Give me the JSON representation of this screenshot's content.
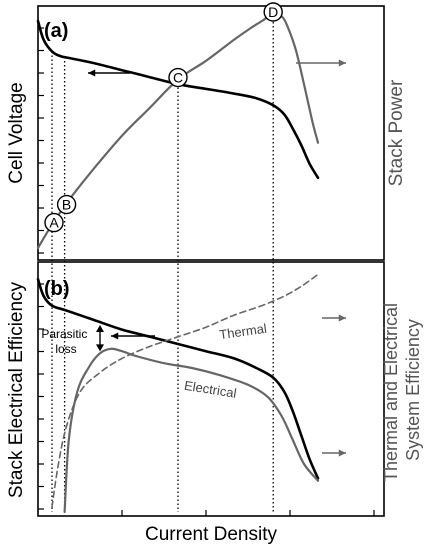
{
  "chart_data": [
    {
      "type": "line",
      "panel_label": "(a)",
      "ylabel_left": "Cell Voltage",
      "ylabel_right": "Stack Power",
      "xlim": [
        0,
        1
      ],
      "series": [
        {
          "key": "voltage",
          "x": [
            0.0,
            0.02,
            0.05,
            0.08,
            0.12,
            0.2,
            0.3,
            0.4,
            0.5,
            0.6,
            0.7,
            0.78,
            0.84,
            0.88,
            0.91,
            0.94,
            0.97,
            1.0
          ],
          "y": [
            0.97,
            0.89,
            0.84,
            0.82,
            0.81,
            0.79,
            0.76,
            0.73,
            0.7,
            0.68,
            0.66,
            0.64,
            0.61,
            0.57,
            0.51,
            0.44,
            0.36,
            0.3
          ]
        },
        {
          "key": "power",
          "x": [
            0.0,
            0.05,
            0.12,
            0.2,
            0.3,
            0.4,
            0.5,
            0.6,
            0.7,
            0.76,
            0.8,
            0.84,
            0.87,
            0.89,
            0.92,
            0.95,
            0.98,
            1.0
          ],
          "y": [
            0.0,
            0.1,
            0.22,
            0.34,
            0.48,
            0.6,
            0.72,
            0.8,
            0.89,
            0.94,
            0.97,
            1.0,
            0.99,
            0.95,
            0.85,
            0.7,
            0.54,
            0.45
          ]
        }
      ],
      "points": [
        {
          "label": "A",
          "x": 0.05,
          "series": "power"
        },
        {
          "label": "B",
          "x": 0.095,
          "series": "power"
        },
        {
          "label": "C",
          "x": 0.5,
          "series": "power"
        },
        {
          "label": "D",
          "x": 0.84,
          "series": "power"
        }
      ]
    },
    {
      "type": "line",
      "panel_label": "(b)",
      "ylabel_left": "Stack Electrical Efficiency",
      "ylabel_right": "Thermal and Electrical\nSystem Efficiency",
      "xlabel": "Current Density",
      "xlim": [
        0,
        1
      ],
      "annotation": "Parasitic\nloss",
      "series": [
        {
          "key": "stack",
          "x": [
            0.0,
            0.02,
            0.05,
            0.1,
            0.2,
            0.3,
            0.4,
            0.5,
            0.6,
            0.7,
            0.78,
            0.84,
            0.88,
            0.91,
            0.94,
            0.97,
            1.0
          ],
          "y": [
            0.97,
            0.9,
            0.86,
            0.84,
            0.8,
            0.76,
            0.73,
            0.7,
            0.67,
            0.64,
            0.6,
            0.56,
            0.5,
            0.42,
            0.32,
            0.22,
            0.14
          ]
        },
        {
          "key": "electrical",
          "name": "Electrical",
          "x": [
            0.095,
            0.11,
            0.14,
            0.18,
            0.22,
            0.26,
            0.3,
            0.35,
            0.45,
            0.55,
            0.65,
            0.75,
            0.82,
            0.87,
            0.91,
            0.95,
            1.0
          ],
          "y": [
            0.0,
            0.3,
            0.5,
            0.6,
            0.66,
            0.68,
            0.67,
            0.65,
            0.62,
            0.6,
            0.57,
            0.53,
            0.48,
            0.4,
            0.3,
            0.2,
            0.13
          ]
        },
        {
          "key": "thermal",
          "name": "Thermal",
          "x": [
            0.05,
            0.07,
            0.1,
            0.15,
            0.22,
            0.3,
            0.4,
            0.5,
            0.6,
            0.7,
            0.8,
            0.88,
            0.94,
            1.0
          ],
          "y": [
            0.02,
            0.18,
            0.35,
            0.5,
            0.58,
            0.64,
            0.69,
            0.73,
            0.77,
            0.82,
            0.86,
            0.9,
            0.94,
            0.99
          ]
        }
      ]
    }
  ]
}
